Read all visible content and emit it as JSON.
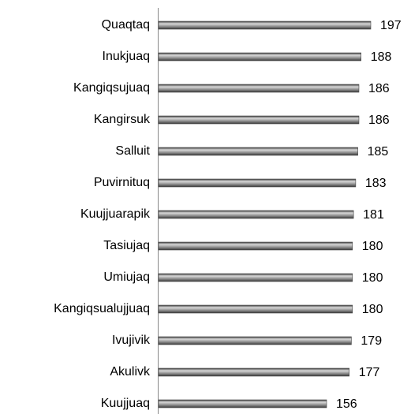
{
  "chart_data": {
    "type": "bar",
    "orientation": "horizontal",
    "color": "#7f7f7f",
    "categories": [
      "Quaqtaq",
      "Inukjuaq",
      "Kangiqsujuaq",
      "Kangirsuk",
      "Salluit",
      "Puvirnituq",
      "Kuujjuarapik",
      "Tasiujaq",
      "Umiujaq",
      "Kangiqsualujjuaq",
      "Ivujivik",
      "Akulivk",
      "Kuujjuaq"
    ],
    "values": [
      197,
      188,
      186,
      186,
      185,
      183,
      181,
      180,
      180,
      180,
      179,
      177,
      156
    ]
  }
}
